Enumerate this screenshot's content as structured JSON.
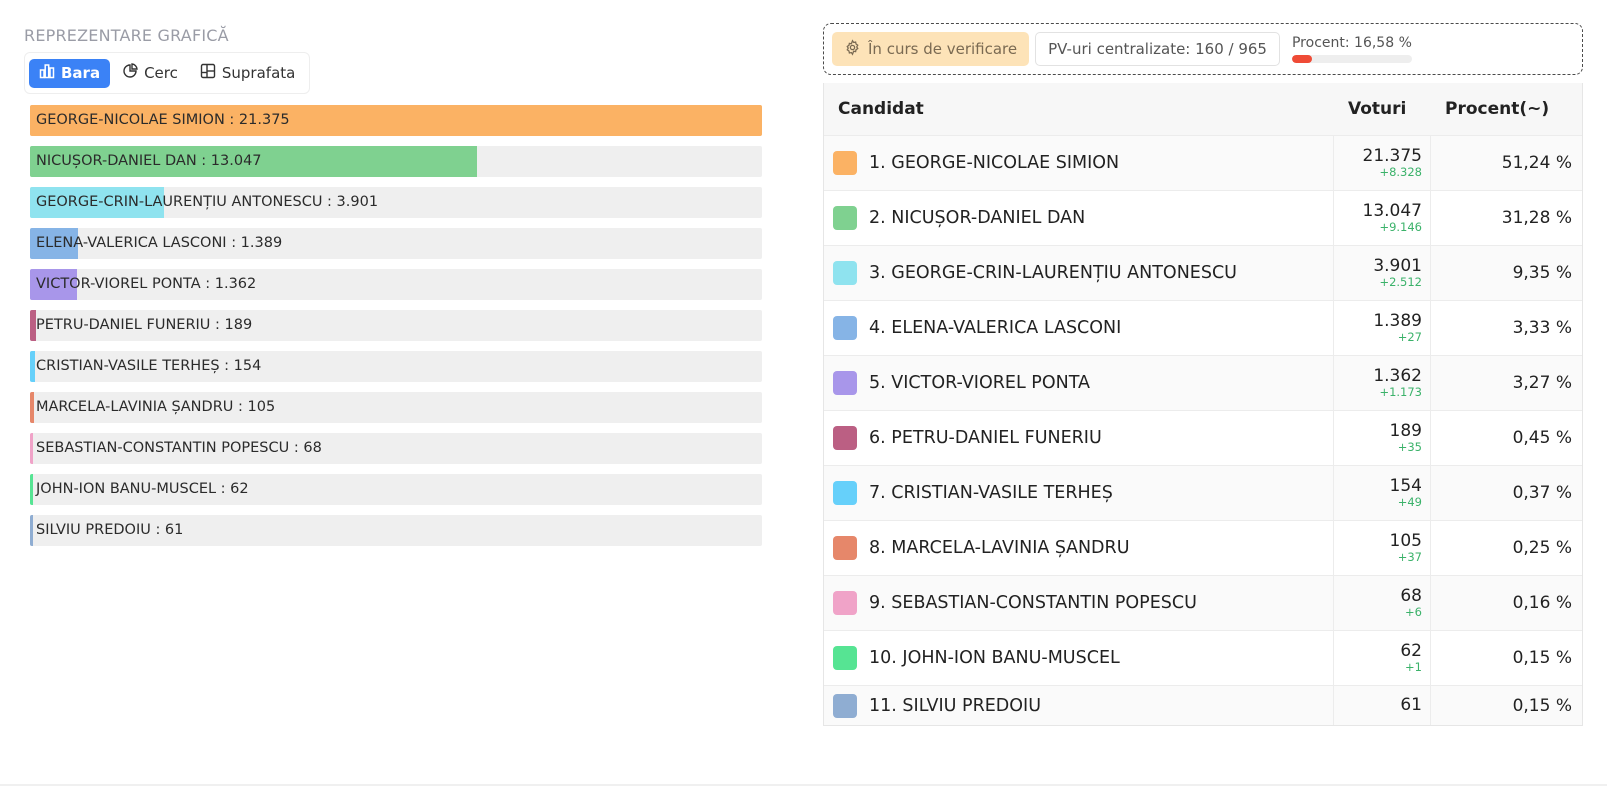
{
  "left": {
    "section_title": "REPREZENTARE GRAFICĂ",
    "tabs": [
      {
        "label": "Bara",
        "icon": "bar-chart-icon",
        "active": true
      },
      {
        "label": "Cerc",
        "icon": "pie-chart-icon",
        "active": false
      },
      {
        "label": "Suprafata",
        "icon": "treemap-icon",
        "active": false
      }
    ]
  },
  "status": {
    "verification_label": "În curs de verificare",
    "pv_label": "PV-uri centralizate: 160 / 965",
    "percent_label": "Procent: 16,58 %",
    "progress_fraction": 0.1658
  },
  "table": {
    "headers": {
      "candidate": "Candidat",
      "votes": "Voturi",
      "percent": "Procent(~)"
    },
    "rows": [
      {
        "rank": "1.",
        "name": "GEORGE-NICOLAE SIMION",
        "votes": "21.375",
        "delta": "+8.328",
        "percent": "51,24 %",
        "color": "#fbb264"
      },
      {
        "rank": "2.",
        "name": "NICUȘOR-DANIEL DAN",
        "votes": "13.047",
        "delta": "+9.146",
        "percent": "31,28 %",
        "color": "#7fd190"
      },
      {
        "rank": "3.",
        "name": "GEORGE-CRIN-LAURENȚIU ANTONESCU",
        "votes": "3.901",
        "delta": "+2.512",
        "percent": "9,35 %",
        "color": "#8fe3ef"
      },
      {
        "rank": "4.",
        "name": "ELENA-VALERICA LASCONI",
        "votes": "1.389",
        "delta": "+27",
        "percent": "3,33 %",
        "color": "#86b4e6"
      },
      {
        "rank": "5.",
        "name": "VICTOR-VIOREL PONTA",
        "votes": "1.362",
        "delta": "+1.173",
        "percent": "3,27 %",
        "color": "#a896ea"
      },
      {
        "rank": "6.",
        "name": "PETRU-DANIEL FUNERIU",
        "votes": "189",
        "delta": "+35",
        "percent": "0,45 %",
        "color": "#bb5f83"
      },
      {
        "rank": "7.",
        "name": "CRISTIAN-VASILE TERHEȘ",
        "votes": "154",
        "delta": "+49",
        "percent": "0,37 %",
        "color": "#66d0fa"
      },
      {
        "rank": "8.",
        "name": "MARCELA-LAVINIA ȘANDRU",
        "votes": "105",
        "delta": "+37",
        "percent": "0,25 %",
        "color": "#e6876a"
      },
      {
        "rank": "9.",
        "name": "SEBASTIAN-CONSTANTIN POPESCU",
        "votes": "68",
        "delta": "+6",
        "percent": "0,16 %",
        "color": "#f0a3c8"
      },
      {
        "rank": "10.",
        "name": "JOHN-ION BANU-MUSCEL",
        "votes": "62",
        "delta": "+1",
        "percent": "0,15 %",
        "color": "#56e493"
      },
      {
        "rank": "11.",
        "name": "SILVIU PREDOIU",
        "votes": "61",
        "delta": "",
        "percent": "0,15 %",
        "color": "#8fadd2"
      }
    ]
  },
  "chart_data": {
    "type": "bar",
    "orientation": "horizontal",
    "categories": [
      "GEORGE-NICOLAE SIMION",
      "NICUȘOR-DANIEL DAN",
      "GEORGE-CRIN-LAURENȚIU ANTONESCU",
      "ELENA-VALERICA LASCONI",
      "VICTOR-VIOREL PONTA",
      "PETRU-DANIEL FUNERIU",
      "CRISTIAN-VASILE TERHEȘ",
      "MARCELA-LAVINIA ȘANDRU",
      "SEBASTIAN-CONSTANTIN POPESCU",
      "JOHN-ION BANU-MUSCEL",
      "SILVIU PREDOIU"
    ],
    "values": [
      21375,
      13047,
      3901,
      1389,
      1362,
      189,
      154,
      105,
      68,
      62,
      61
    ],
    "labels": [
      "GEORGE-NICOLAE SIMION : 21.375",
      "NICUȘOR-DANIEL DAN : 13.047",
      "GEORGE-CRIN-LAURENȚIU ANTONESCU : 3.901",
      "ELENA-VALERICA LASCONI : 1.389",
      "VICTOR-VIOREL PONTA : 1.362",
      "PETRU-DANIEL FUNERIU : 189",
      "CRISTIAN-VASILE TERHEȘ : 154",
      "MARCELA-LAVINIA ȘANDRU : 105",
      "SEBASTIAN-CONSTANTIN POPESCU : 68",
      "JOHN-ION BANU-MUSCEL : 62",
      "SILVIU PREDOIU : 61"
    ],
    "colors": [
      "#fbb264",
      "#7fd190",
      "#8fe3ef",
      "#86b4e6",
      "#a896ea",
      "#bb5f83",
      "#66d0fa",
      "#e6876a",
      "#f0a3c8",
      "#56e493",
      "#8fadd2"
    ],
    "xlim": [
      0,
      21375
    ],
    "title": "",
    "xlabel": "",
    "ylabel": "",
    "grid": false,
    "legend": "none"
  }
}
